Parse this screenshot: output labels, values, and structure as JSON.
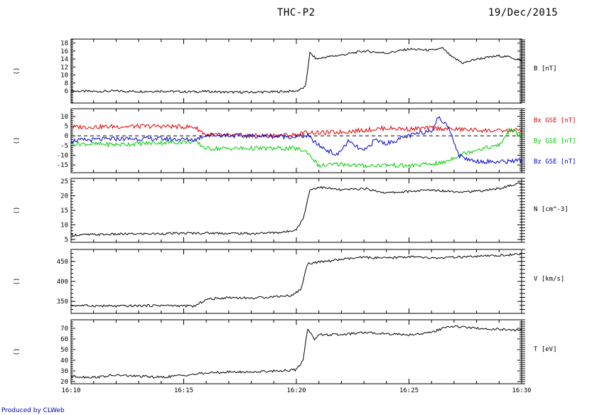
{
  "header": {
    "title": "THC-P2",
    "date": "19/Dec/2015"
  },
  "footer": {
    "credit": "Produced by CLWeb"
  },
  "colors": {
    "bx": "#dd0000",
    "by": "#00cc00",
    "bz": "#0000cc",
    "axis": "#000000",
    "zero_line": "#000000"
  },
  "chart_data": [
    {
      "type": "line",
      "panel_label": "()",
      "x_ticks": [
        "16:10",
        "16:15",
        "16:20",
        "16:25",
        "16:30"
      ],
      "ylim": [
        3,
        19
      ],
      "y_ticks": [
        6,
        8,
        10,
        12,
        14,
        16,
        18
      ],
      "series": [
        {
          "name": "B [nT]",
          "color": "#000000",
          "x": [
            0,
            1,
            2,
            3,
            4,
            5,
            6,
            7,
            8,
            9,
            10,
            10.4,
            10.6,
            10.9,
            11.3,
            12,
            13,
            14,
            15,
            16,
            16.5,
            16.9,
            17.4,
            18,
            19,
            19.5,
            20
          ],
          "y": [
            6.0,
            5.9,
            6.0,
            5.9,
            6.0,
            5.8,
            5.9,
            5.7,
            5.7,
            5.8,
            6.0,
            7.0,
            15.5,
            14.0,
            14.5,
            15.0,
            16.0,
            15.5,
            16.5,
            16.2,
            16.7,
            14.5,
            13.0,
            14.0,
            14.8,
            14.5,
            13.5
          ]
        }
      ]
    },
    {
      "type": "line",
      "panel_label": "()",
      "x_ticks": [
        "16:10",
        "16:15",
        "16:20",
        "16:25",
        "16:30"
      ],
      "ylim": [
        -19,
        14
      ],
      "y_ticks": [
        -15,
        -10,
        -5,
        0,
        5,
        10
      ],
      "zero_line": true,
      "series": [
        {
          "name": "Bx GSE [nT]",
          "color": "#dd0000",
          "x": [
            0,
            2,
            4,
            5.5,
            6,
            8,
            10,
            10.5,
            11,
            12,
            13,
            14,
            15,
            16,
            17,
            18,
            19,
            20
          ],
          "y": [
            4.5,
            4.8,
            5.0,
            4.5,
            0.5,
            0.0,
            0.5,
            2.0,
            1.5,
            2.0,
            3.0,
            4.0,
            3.5,
            4.0,
            3.5,
            3.0,
            2.5,
            3.0
          ]
        },
        {
          "name": "By GSE [nT]",
          "color": "#00cc00",
          "x": [
            0,
            2,
            4,
            5.5,
            6,
            8,
            10,
            10.5,
            11,
            12,
            13,
            14,
            15,
            16,
            16.5,
            17.2,
            18,
            19,
            19.5,
            20
          ],
          "y": [
            -4.0,
            -4.5,
            -3.5,
            -3.0,
            -6.5,
            -6.5,
            -6.5,
            -8.5,
            -15.5,
            -14.5,
            -15.5,
            -15.0,
            -15.5,
            -14.5,
            -14.0,
            -10.0,
            -7.0,
            -5.0,
            3.5,
            0.0
          ]
        },
        {
          "name": "Bz GSE [nT]",
          "color": "#0000cc",
          "x": [
            0,
            2,
            4,
            5.5,
            6,
            8,
            10,
            10.5,
            11,
            11.8,
            12.3,
            13,
            13.5,
            14,
            15,
            16,
            16.3,
            16.8,
            17.2,
            17.6,
            18,
            19,
            20
          ],
          "y": [
            -2.5,
            -1.5,
            -1.5,
            -2.0,
            0.5,
            0.0,
            -0.5,
            0.0,
            -5.0,
            -10.0,
            -3.0,
            -8.0,
            -2.0,
            -4.0,
            0.0,
            3.0,
            9.5,
            4.0,
            -10.0,
            -12.0,
            -13.0,
            -13.5,
            -12.5
          ]
        }
      ]
    },
    {
      "type": "line",
      "panel_label": "()",
      "x_ticks": [
        "16:10",
        "16:15",
        "16:20",
        "16:25",
        "16:30"
      ],
      "ylim": [
        4,
        26
      ],
      "y_ticks": [
        5,
        10,
        15,
        20,
        25
      ],
      "series": [
        {
          "name": "N [cm^-3]",
          "color": "#000000",
          "x": [
            0,
            2,
            4,
            6,
            8,
            9.5,
            10,
            10.3,
            10.6,
            11,
            12,
            13,
            14,
            15,
            16,
            17,
            18,
            19,
            20
          ],
          "y": [
            6.5,
            6.8,
            7.0,
            7.2,
            7.0,
            7.5,
            8.5,
            12.0,
            22.0,
            23.0,
            22.0,
            22.5,
            21.0,
            21.5,
            22.0,
            21.5,
            21.5,
            22.5,
            24.5
          ]
        }
      ]
    },
    {
      "type": "line",
      "panel_label": "()",
      "x_ticks": [
        "16:10",
        "16:15",
        "16:20",
        "16:25",
        "16:30"
      ],
      "ylim": [
        320,
        480
      ],
      "y_ticks": [
        350,
        400,
        450
      ],
      "series": [
        {
          "name": "V [km/s]",
          "color": "#000000",
          "x": [
            0,
            2,
            4,
            5.5,
            6,
            7,
            8,
            9,
            9.8,
            10.2,
            10.5,
            11,
            12,
            13,
            14,
            15,
            16,
            17,
            18,
            19,
            20
          ],
          "y": [
            340,
            338,
            340,
            338,
            355,
            360,
            358,
            362,
            365,
            380,
            445,
            448,
            455,
            460,
            458,
            462,
            458,
            460,
            462,
            465,
            468
          ]
        }
      ]
    },
    {
      "type": "line",
      "panel_label": "()",
      "x_ticks": [
        "16:10",
        "16:15",
        "16:20",
        "16:25",
        "16:30"
      ],
      "ylim": [
        18,
        78
      ],
      "y_ticks": [
        20,
        30,
        40,
        50,
        60,
        70
      ],
      "series": [
        {
          "name": "T [eV]",
          "color": "#000000",
          "x": [
            0,
            1,
            2,
            3,
            4,
            5,
            6,
            7,
            8,
            9,
            10,
            10.3,
            10.5,
            10.8,
            11,
            12,
            13,
            14,
            15,
            16,
            16.5,
            17,
            18,
            19,
            20
          ],
          "y": [
            25,
            24,
            26,
            25,
            24,
            26,
            28,
            29,
            29,
            30,
            31,
            40,
            70,
            60,
            64,
            64,
            66,
            65,
            64,
            66,
            70,
            72,
            70,
            69,
            68
          ]
        }
      ]
    }
  ]
}
